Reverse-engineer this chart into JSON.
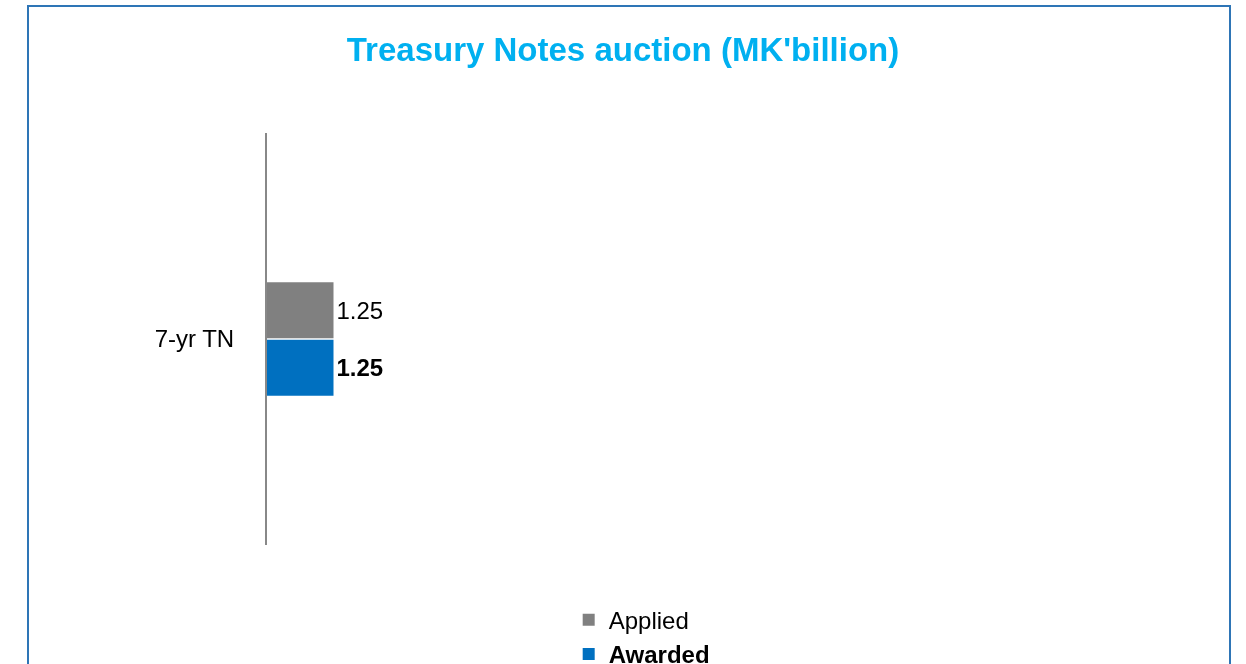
{
  "chart_data": {
    "type": "bar",
    "title": "Treasury Notes auction (MK'billion)",
    "orientation": "horizontal",
    "categories": [
      "7-yr TN"
    ],
    "series": [
      {
        "name": "Applied",
        "color": "#808080",
        "values": [
          1.25
        ]
      },
      {
        "name": "Awarded",
        "color": "#0070c0",
        "values": [
          1.25
        ]
      }
    ],
    "data_labels": true,
    "legend": "bottom",
    "grid": false
  }
}
